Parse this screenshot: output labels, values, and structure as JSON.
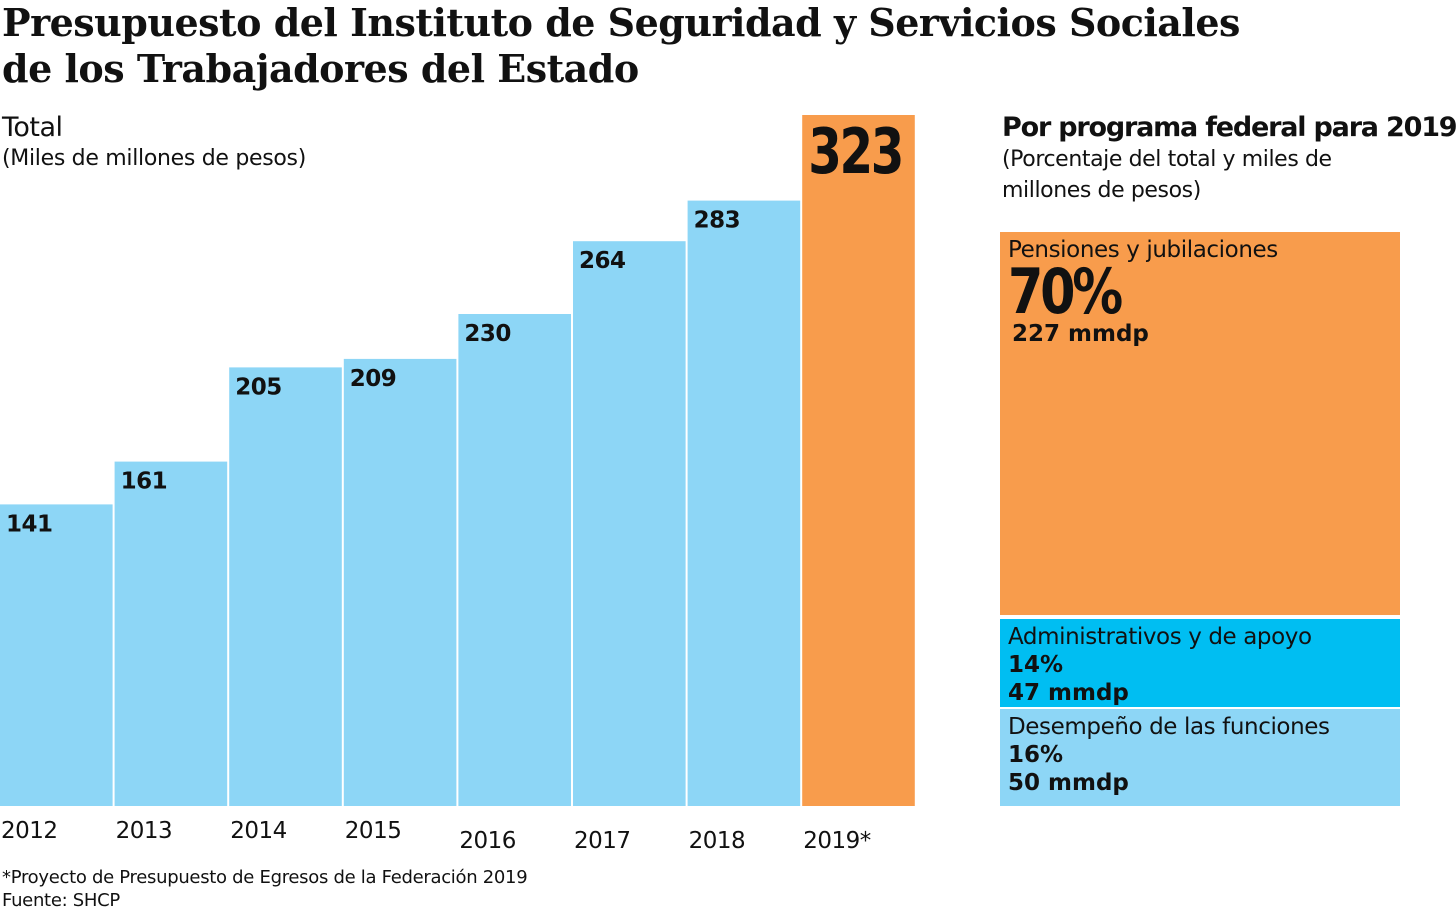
{
  "title_line1": "Presupuesto del Instituto de Seguridad y Servicios Sociales",
  "title_line2": "de los Trabajadores del Estado",
  "chart_data": [
    {
      "type": "bar",
      "title": "Total",
      "subtitle": "(Miles de millones de pesos)",
      "categories": [
        "2012",
        "2013",
        "2014",
        "2015",
        "2016",
        "2017",
        "2018",
        "2019*"
      ],
      "values": [
        141,
        161,
        205,
        209,
        230,
        264,
        283,
        323
      ],
      "data_labels": [
        "141",
        "161",
        "205",
        "209",
        "230",
        "264",
        "283",
        "323"
      ],
      "colors": [
        "#8dd6f6",
        "#8dd6f6",
        "#8dd6f6",
        "#8dd6f6",
        "#8dd6f6",
        "#8dd6f6",
        "#8dd6f6",
        "#f89c4c"
      ],
      "grid": false
    },
    {
      "type": "treemap",
      "title": "Por programa federal para 2019",
      "subtitle": "(Porcentaje del total y miles de millones de pesos)",
      "series": [
        {
          "name": "Pensiones y jubilaciones",
          "percent": 70,
          "percent_label": "70%",
          "value_label": "227 mmdp",
          "value": 227,
          "color": "#f89c4c"
        },
        {
          "name": "Administrativos y de apoyo",
          "percent": 14,
          "percent_label": "14%",
          "value_label": "47 mmdp",
          "value": 47,
          "color": "#00bef2"
        },
        {
          "name": "Desempeño de las funciones",
          "percent": 16,
          "percent_label": "16%",
          "value_label": "50 mmdp",
          "value": 50,
          "color": "#8dd6f6"
        }
      ]
    }
  ],
  "footnote_1": "*Proyecto de Presupuesto de Egresos de la Federación 2019",
  "footnote_2": "Fuente: SHCP"
}
